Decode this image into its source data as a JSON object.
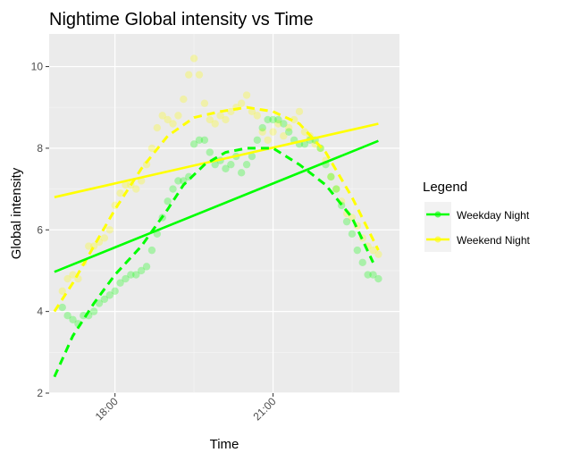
{
  "chart_data": {
    "type": "scatter",
    "title": "Nightime Global intensity vs Time",
    "xlabel": "Time",
    "ylabel": "Global intensity",
    "x_unit": "hours",
    "xlim": [
      16.75,
      23.4
    ],
    "ylim": [
      2.0,
      10.8
    ],
    "x_ticks": [
      {
        "value": 18,
        "label": "18:00"
      },
      {
        "value": 21,
        "label": "21:00"
      }
    ],
    "y_ticks": [
      {
        "value": 2,
        "label": "2"
      },
      {
        "value": 4,
        "label": "4"
      },
      {
        "value": 6,
        "label": "6"
      },
      {
        "value": 8,
        "label": "8"
      },
      {
        "value": 10,
        "label": "10"
      }
    ],
    "grid": true,
    "legend": {
      "title": "Legend",
      "position": "right"
    },
    "series": [
      {
        "name": "Weekday Night",
        "color": "#00ff00",
        "points": [
          [
            17.0,
            4.1
          ],
          [
            17.1,
            3.9
          ],
          [
            17.2,
            3.8
          ],
          [
            17.3,
            3.7
          ],
          [
            17.4,
            3.9
          ],
          [
            17.5,
            3.9
          ],
          [
            17.6,
            4.0
          ],
          [
            17.7,
            4.2
          ],
          [
            17.8,
            4.3
          ],
          [
            17.9,
            4.4
          ],
          [
            18.0,
            4.5
          ],
          [
            18.1,
            4.7
          ],
          [
            18.2,
            4.8
          ],
          [
            18.3,
            4.9
          ],
          [
            18.4,
            4.9
          ],
          [
            18.5,
            5.0
          ],
          [
            18.6,
            5.1
          ],
          [
            18.7,
            5.5
          ],
          [
            18.8,
            5.9
          ],
          [
            18.9,
            6.3
          ],
          [
            19.0,
            6.7
          ],
          [
            19.1,
            7.0
          ],
          [
            19.2,
            7.2
          ],
          [
            19.3,
            7.2
          ],
          [
            19.4,
            7.3
          ],
          [
            19.5,
            8.1
          ],
          [
            19.6,
            8.2
          ],
          [
            19.7,
            8.2
          ],
          [
            19.8,
            7.9
          ],
          [
            19.9,
            7.6
          ],
          [
            20.0,
            7.7
          ],
          [
            20.1,
            7.5
          ],
          [
            20.2,
            7.6
          ],
          [
            20.3,
            7.8
          ],
          [
            20.4,
            7.4
          ],
          [
            20.5,
            7.6
          ],
          [
            20.6,
            7.8
          ],
          [
            20.7,
            8.2
          ],
          [
            20.8,
            8.5
          ],
          [
            20.9,
            8.7
          ],
          [
            21.0,
            8.7
          ],
          [
            21.1,
            8.7
          ],
          [
            21.2,
            8.6
          ],
          [
            21.3,
            8.4
          ],
          [
            21.4,
            8.2
          ],
          [
            21.5,
            8.1
          ],
          [
            21.6,
            8.1
          ],
          [
            21.7,
            8.2
          ],
          [
            21.8,
            8.2
          ],
          [
            21.9,
            8.0
          ],
          [
            22.0,
            7.6
          ],
          [
            22.1,
            7.3
          ],
          [
            22.2,
            7.0
          ],
          [
            22.3,
            6.6
          ],
          [
            22.4,
            6.2
          ],
          [
            22.5,
            5.9
          ],
          [
            22.6,
            5.5
          ],
          [
            22.7,
            5.2
          ],
          [
            22.8,
            4.9
          ],
          [
            22.9,
            4.9
          ],
          [
            23.0,
            4.8
          ]
        ],
        "smooth": [
          [
            16.85,
            2.4
          ],
          [
            17.2,
            3.4
          ],
          [
            17.6,
            4.2
          ],
          [
            18.0,
            4.9
          ],
          [
            18.5,
            5.6
          ],
          [
            19.0,
            6.5
          ],
          [
            19.3,
            7.1
          ],
          [
            19.7,
            7.6
          ],
          [
            20.1,
            7.9
          ],
          [
            20.5,
            8.0
          ],
          [
            21.0,
            8.0
          ],
          [
            21.5,
            7.6
          ],
          [
            22.0,
            7.1
          ],
          [
            22.5,
            6.3
          ],
          [
            22.9,
            5.2
          ]
        ],
        "linear": [
          [
            16.85,
            4.97
          ],
          [
            23.0,
            8.18
          ]
        ]
      },
      {
        "name": "Weekend Night",
        "color": "#ffff00",
        "points": [
          [
            17.0,
            4.5
          ],
          [
            17.1,
            4.8
          ],
          [
            17.2,
            4.9
          ],
          [
            17.3,
            4.8
          ],
          [
            17.4,
            5.2
          ],
          [
            17.5,
            5.6
          ],
          [
            17.6,
            5.6
          ],
          [
            17.7,
            5.7
          ],
          [
            17.8,
            5.8
          ],
          [
            17.9,
            6.0
          ],
          [
            18.0,
            6.6
          ],
          [
            18.1,
            6.9
          ],
          [
            18.2,
            7.1
          ],
          [
            18.3,
            7.1
          ],
          [
            18.4,
            7.0
          ],
          [
            18.5,
            7.2
          ],
          [
            18.6,
            7.6
          ],
          [
            18.7,
            8.0
          ],
          [
            18.8,
            8.5
          ],
          [
            18.9,
            8.8
          ],
          [
            19.0,
            8.7
          ],
          [
            19.1,
            8.6
          ],
          [
            19.2,
            8.8
          ],
          [
            19.3,
            9.2
          ],
          [
            19.4,
            9.8
          ],
          [
            19.5,
            10.2
          ],
          [
            19.6,
            9.8
          ],
          [
            19.7,
            9.1
          ],
          [
            19.8,
            8.7
          ],
          [
            19.9,
            8.6
          ],
          [
            20.0,
            8.8
          ],
          [
            20.1,
            8.7
          ],
          [
            20.2,
            8.9
          ],
          [
            20.3,
            9.0
          ],
          [
            20.4,
            9.1
          ],
          [
            20.5,
            9.3
          ],
          [
            20.6,
            8.9
          ],
          [
            20.7,
            8.8
          ],
          [
            20.8,
            8.4
          ],
          [
            20.9,
            8.2
          ],
          [
            21.0,
            8.4
          ],
          [
            21.1,
            8.6
          ],
          [
            21.2,
            8.3
          ],
          [
            21.3,
            8.5
          ],
          [
            21.4,
            8.7
          ],
          [
            21.5,
            8.9
          ],
          [
            21.6,
            8.4
          ],
          [
            21.7,
            8.3
          ],
          [
            21.8,
            8.1
          ],
          [
            21.9,
            8.0
          ],
          [
            22.0,
            7.7
          ],
          [
            22.1,
            7.3
          ],
          [
            22.2,
            7.0
          ],
          [
            22.3,
            6.7
          ],
          [
            22.4,
            6.4
          ],
          [
            22.5,
            6.3
          ],
          [
            22.6,
            6.1
          ],
          [
            22.7,
            5.8
          ],
          [
            22.8,
            5.6
          ],
          [
            22.9,
            5.5
          ],
          [
            23.0,
            5.4
          ]
        ],
        "smooth": [
          [
            16.85,
            4.0
          ],
          [
            17.2,
            4.7
          ],
          [
            17.6,
            5.6
          ],
          [
            18.0,
            6.5
          ],
          [
            18.5,
            7.5
          ],
          [
            19.0,
            8.3
          ],
          [
            19.5,
            8.75
          ],
          [
            20.0,
            8.9
          ],
          [
            20.5,
            9.0
          ],
          [
            21.0,
            8.9
          ],
          [
            21.5,
            8.6
          ],
          [
            22.0,
            7.9
          ],
          [
            22.5,
            6.8
          ],
          [
            23.0,
            5.5
          ]
        ],
        "linear": [
          [
            16.85,
            6.8
          ],
          [
            23.0,
            8.6
          ]
        ]
      }
    ]
  }
}
